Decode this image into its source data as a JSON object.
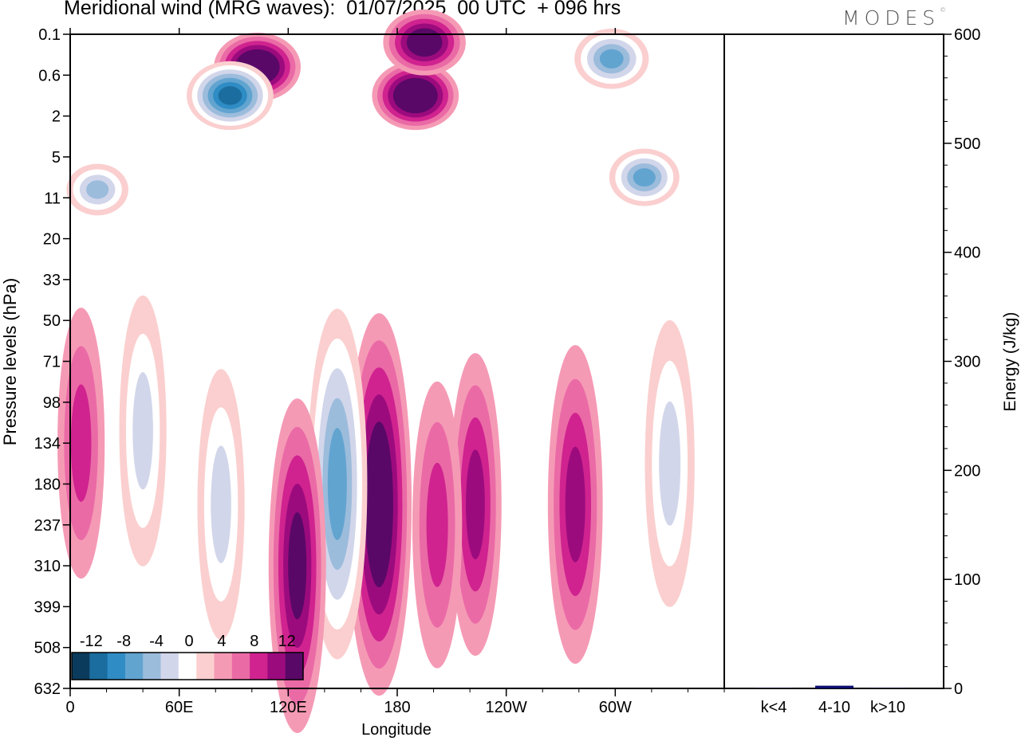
{
  "header": {
    "title": "Meridional wind (MRG waves):  01/07/2025  00 UTC  + 096 hrs",
    "brand": "MODES",
    "brand_mark": "©"
  },
  "colors": {
    "neg": [
      "#0b3b5c",
      "#1a6d9e",
      "#2f8cc4",
      "#62a4d0",
      "#9cbcdc",
      "#d2d6ea"
    ],
    "zero": "#ffffff",
    "pos": [
      "#fbcfcf",
      "#f59ab5",
      "#ea6aa6",
      "#d0238f",
      "#9c0b7e",
      "#5a0868"
    ],
    "bar": "#0d0d6e"
  },
  "chart_data": [
    {
      "type": "heatmap",
      "title": "Meridional wind (MRG waves):  01/07/2025  00 UTC  + 096 hrs",
      "xlabel": "Longitude",
      "ylabel": "Pressure levels (hPa)",
      "x_ticks": [
        "0",
        "60E",
        "120E",
        "180",
        "120W",
        "60W"
      ],
      "x_tick_degrees": [
        0,
        60,
        120,
        180,
        240,
        300
      ],
      "xlim": [
        0,
        360
      ],
      "y_ticks": [
        "0.1",
        "0.6",
        "2",
        "5",
        "11",
        "20",
        "33",
        "50",
        "71",
        "98",
        "134",
        "180",
        "237",
        "310",
        "399",
        "508",
        "632"
      ],
      "colorbar": {
        "labels": [
          "-12",
          "-8",
          "-4",
          "0",
          "4",
          "8",
          "12"
        ],
        "levels": [
          -14,
          -12,
          -10,
          -8,
          -6,
          -4,
          -2,
          2,
          4,
          6,
          8,
          10,
          12,
          14
        ]
      },
      "features": [
        {
          "lon": 170,
          "level_index": 11.5,
          "value": 13
        },
        {
          "lon": 147,
          "level_index": 11,
          "value": -11
        },
        {
          "lon": 125,
          "level_index": 13,
          "value": 10
        },
        {
          "lon": 223,
          "level_index": 11.5,
          "value": 8
        },
        {
          "lon": 278,
          "level_index": 11.5,
          "value": 9
        },
        {
          "lon": 202,
          "level_index": 12,
          "value": 7
        },
        {
          "lon": 190,
          "level_index": 1.5,
          "value": 14
        },
        {
          "lon": 195,
          "level_index": 0.2,
          "value": 13
        },
        {
          "lon": 103,
          "level_index": 0.8,
          "value": 14
        },
        {
          "lon": 88,
          "level_index": 1.5,
          "value": -14
        },
        {
          "lon": 298,
          "level_index": 0.6,
          "value": -11
        },
        {
          "lon": 316,
          "level_index": 3.5,
          "value": -10
        },
        {
          "lon": 15,
          "level_index": 3.8,
          "value": -8
        },
        {
          "lon": 330,
          "level_index": 10.5,
          "value": -7
        },
        {
          "lon": 83,
          "level_index": 11.5,
          "value": -6
        },
        {
          "lon": 40,
          "level_index": 9.7,
          "value": -6
        },
        {
          "lon": 6,
          "level_index": 10,
          "value": 6
        }
      ]
    },
    {
      "type": "bar",
      "ylabel": "Energy (J/kg)",
      "categories": [
        "k<4",
        "4-10",
        "k>10"
      ],
      "values": [
        0.3,
        2.5,
        0.2
      ],
      "ylim": [
        0,
        600
      ],
      "y_ticks": [
        "0",
        "100",
        "200",
        "300",
        "400",
        "500",
        "600"
      ]
    }
  ]
}
